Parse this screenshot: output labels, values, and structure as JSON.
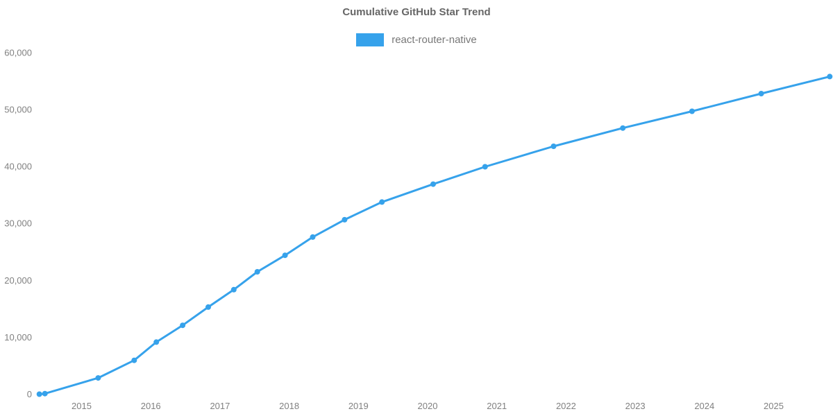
{
  "header": {
    "title": "Cumulative GitHub Star Trend",
    "legend": [
      {
        "label": "react-router-native",
        "color": "#36a2eb"
      }
    ]
  },
  "chart_data": {
    "type": "line",
    "title": "Cumulative GitHub Star Trend",
    "xlabel": "",
    "ylabel": "",
    "grid": false,
    "axis_lines": false,
    "legend_position": "top-center",
    "x_ticks": [
      2015,
      2016,
      2017,
      2018,
      2019,
      2020,
      2021,
      2022,
      2023,
      2024,
      2025
    ],
    "y_ticks": [
      0,
      10000,
      20000,
      30000,
      40000,
      50000,
      60000
    ],
    "xlim": [
      2014.25,
      2025.87
    ],
    "ylim": [
      0,
      60000
    ],
    "tick_color": "#808080",
    "series": [
      {
        "name": "react-router-native",
        "color": "#36a2eb",
        "marker": "circle",
        "x": [
          2014.39,
          2014.47,
          2015.24,
          2015.76,
          2016.08,
          2016.46,
          2016.83,
          2017.2,
          2017.54,
          2017.94,
          2018.34,
          2018.8,
          2019.34,
          2020.08,
          2020.83,
          2021.82,
          2022.82,
          2023.82,
          2024.82,
          2025.81
        ],
        "y": [
          0,
          100,
          2850,
          5950,
          9150,
          12100,
          15300,
          18350,
          21500,
          24400,
          27600,
          30650,
          33750,
          36900,
          39950,
          43550,
          46750,
          49700,
          52800,
          55800
        ]
      }
    ]
  }
}
